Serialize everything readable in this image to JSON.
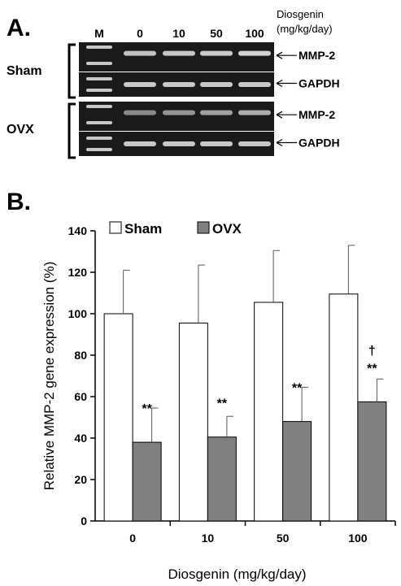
{
  "panel_a": {
    "letter": "A.",
    "lane_labels": [
      "M",
      "0",
      "10",
      "50",
      "100"
    ],
    "dose_header_line1": "Diosgenin",
    "dose_header_line2": "(mg/kg/day)",
    "groups": [
      {
        "label": "Sham",
        "bands": [
          "MMP-2",
          "GAPDH"
        ],
        "mmp2_intensity": [
          0.82,
          0.84,
          0.86,
          0.9
        ],
        "gapdh_intensity": [
          0.85,
          0.85,
          0.85,
          0.85
        ]
      },
      {
        "label": "OVX",
        "bands": [
          "MMP-2",
          "GAPDH"
        ],
        "mmp2_intensity": [
          0.55,
          0.6,
          0.65,
          0.72
        ],
        "gapdh_intensity": [
          0.85,
          0.85,
          0.85,
          0.85
        ]
      }
    ],
    "colors": {
      "gel": "#1a1a1a",
      "band": "#e8e8e8"
    }
  },
  "panel_b": {
    "letter": "B."
  },
  "chart_data": {
    "type": "bar",
    "categories": [
      "0",
      "10",
      "50",
      "100"
    ],
    "series": [
      {
        "name": "Sham",
        "values": [
          100,
          95.5,
          105.5,
          109.5
        ],
        "errors": [
          21,
          28,
          25,
          23.5
        ],
        "color": "#ffffff"
      },
      {
        "name": "OVX",
        "values": [
          38,
          40.5,
          48,
          57.5
        ],
        "errors": [
          16.5,
          10,
          16.5,
          11
        ],
        "color": "#808080"
      }
    ],
    "annotations": [
      {
        "category": "0",
        "series": "OVX",
        "text": "**"
      },
      {
        "category": "10",
        "series": "OVX",
        "text": "**"
      },
      {
        "category": "50",
        "series": "OVX",
        "text": "**"
      },
      {
        "category": "100",
        "series": "OVX",
        "text": "**"
      },
      {
        "category": "100",
        "series": "OVX",
        "text": "†"
      }
    ],
    "xlabel": "Diosgenin (mg/kg/day)",
    "ylabel": "Relative MMP-2 gene expression (%)",
    "ylim": [
      0,
      140
    ],
    "yticks": [
      0,
      20,
      40,
      60,
      80,
      100,
      120,
      140
    ],
    "grid": false,
    "legend_placement": "top-left"
  }
}
